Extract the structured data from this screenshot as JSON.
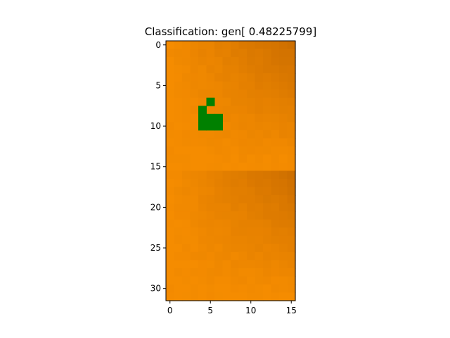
{
  "chart_data": {
    "type": "heatmap",
    "title": "Classification: gen[ 0.48225799]",
    "xlabel": "",
    "ylabel": "",
    "xlim": [
      -0.5,
      15.5
    ],
    "ylim": [
      31.5,
      -0.5
    ],
    "x_ticks": [
      0,
      5,
      10,
      15
    ],
    "y_ticks": [
      0,
      5,
      10,
      15,
      20,
      25,
      30
    ],
    "grid": false,
    "colors": {
      "image_base": "#f58c00",
      "image_dark_corner": "#cc6e00",
      "overlay_patch": "#008000",
      "axes_border": "#000000"
    },
    "grid_shape": {
      "rows": 32,
      "cols": 16
    },
    "green_cells": [
      [
        7,
        5
      ],
      [
        8,
        4
      ],
      [
        9,
        4
      ],
      [
        9,
        5
      ],
      [
        9,
        6
      ],
      [
        10,
        4
      ],
      [
        10,
        5
      ],
      [
        10,
        6
      ]
    ]
  }
}
